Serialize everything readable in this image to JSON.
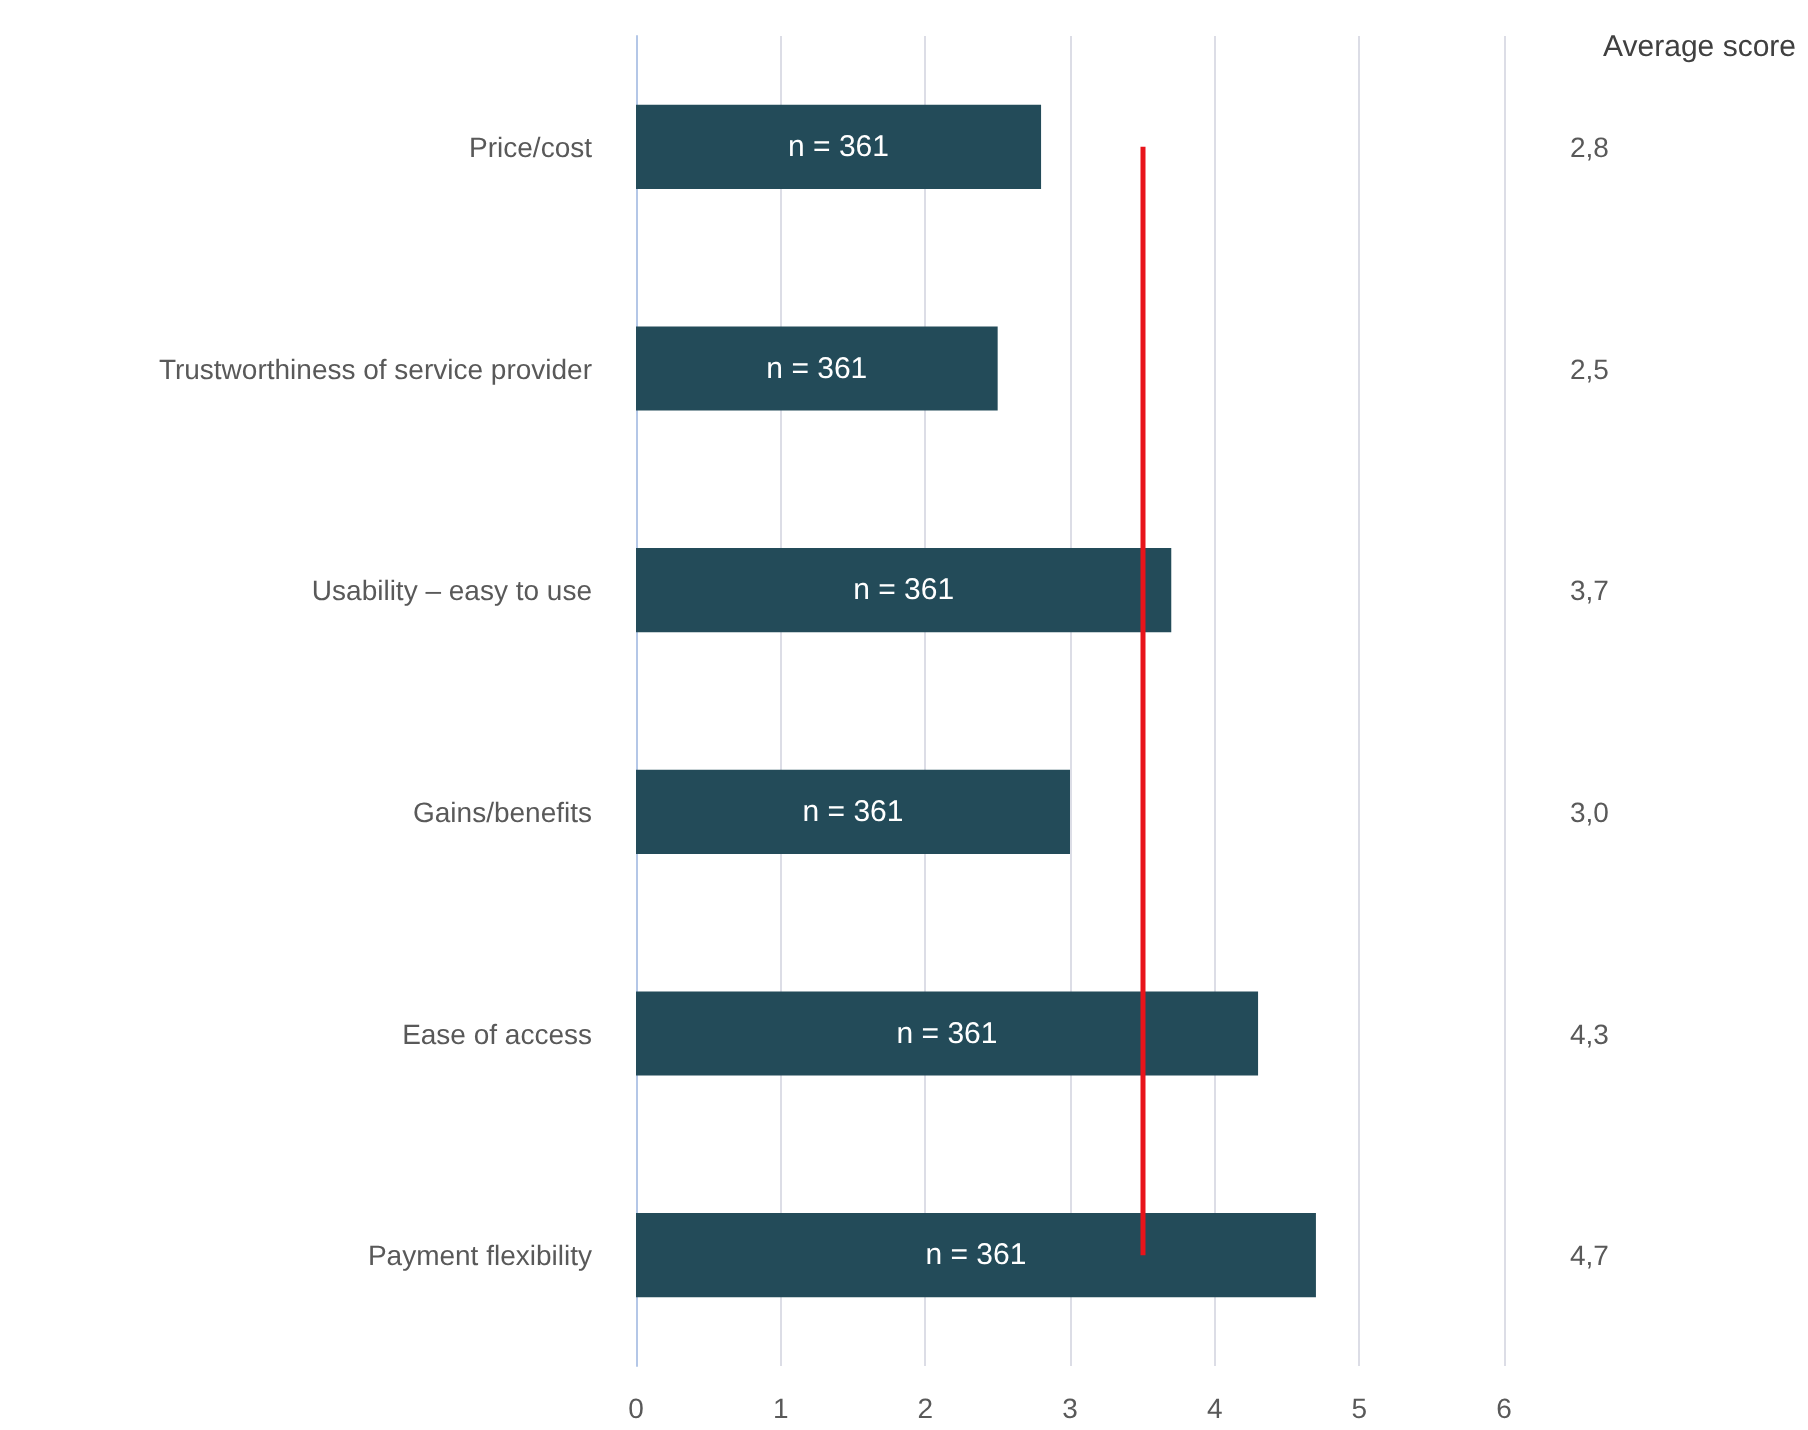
{
  "chart_data": {
    "type": "bar",
    "orientation": "horizontal",
    "categories": [
      "Price/cost",
      "Trustworthiness of service provider",
      "Usability – easy to use",
      "Gains/benefits",
      "Ease of access",
      "Payment flexibility"
    ],
    "values": [
      2.8,
      2.5,
      3.7,
      3.0,
      4.3,
      4.7
    ],
    "value_labels": [
      "2,8",
      "2,5",
      "3,7",
      "3,0",
      "4,3",
      "4,7"
    ],
    "color": "#234b59",
    "xlim": [
      0,
      6
    ],
    "xticks": [
      0,
      1,
      2,
      3,
      4,
      5,
      6
    ],
    "grid": "x",
    "ref_lines": [
      {
        "axis": "x",
        "value": 3.5,
        "color": "#e8141b"
      }
    ],
    "annotations": [
      "Average score",
      "n = 361",
      "n = 361",
      "n = 361",
      "n = 361",
      "n = 361",
      "n = 361"
    ]
  }
}
